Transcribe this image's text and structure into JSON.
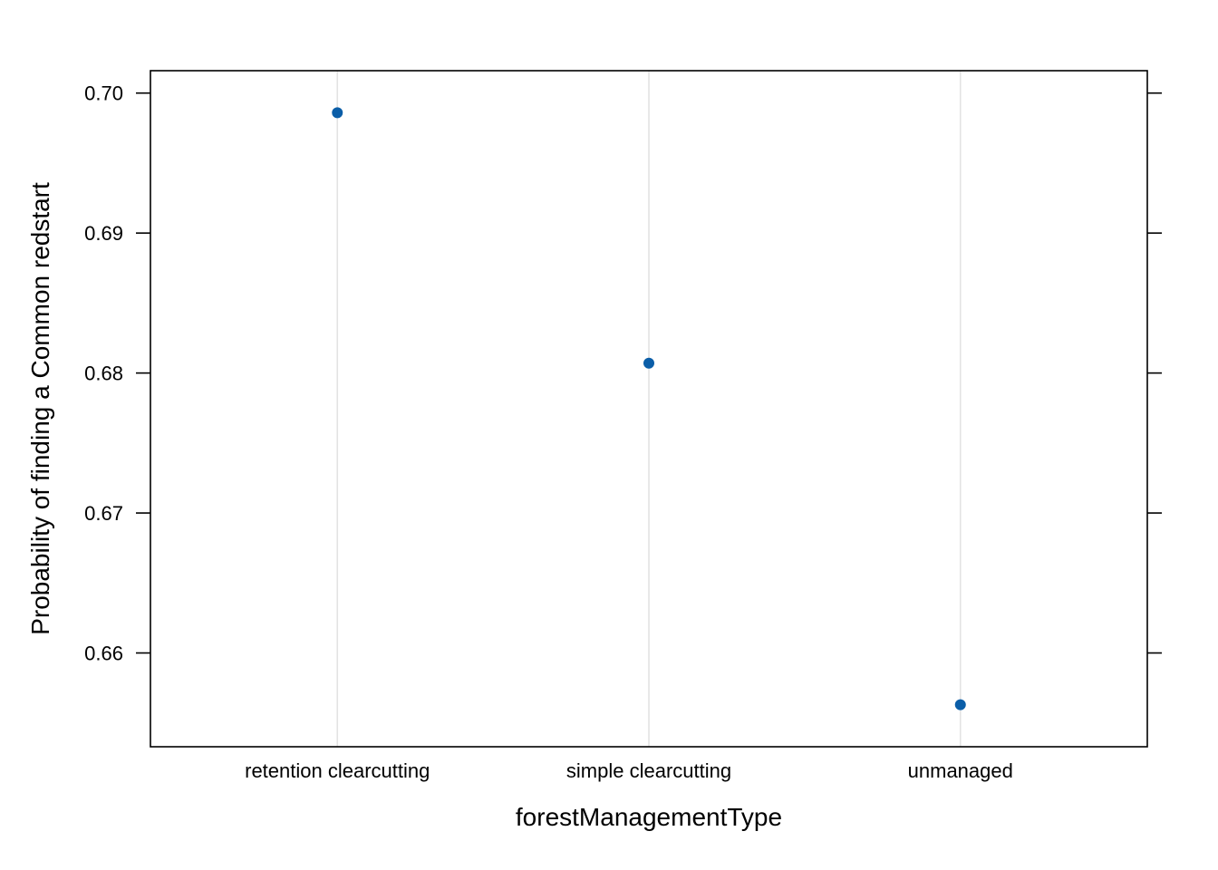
{
  "chart_data": {
    "type": "scatter",
    "title": "",
    "xlabel": "forestManagementType",
    "ylabel": "Probability of finding a Common redstart",
    "categories": [
      "retention clearcutting",
      "simple clearcutting",
      "unmanaged"
    ],
    "values": [
      0.6986,
      0.6807,
      0.6563
    ],
    "ylim": [
      0.6533,
      0.7016
    ],
    "yticks": [
      0.66,
      0.67,
      0.68,
      0.69,
      0.7
    ],
    "ytick_labels": [
      "0.66",
      "0.67",
      "0.68",
      "0.69",
      "0.70"
    ],
    "grid": "vertical",
    "point_color": "#0b5ea8",
    "grid_color": "#e3e3e3"
  }
}
